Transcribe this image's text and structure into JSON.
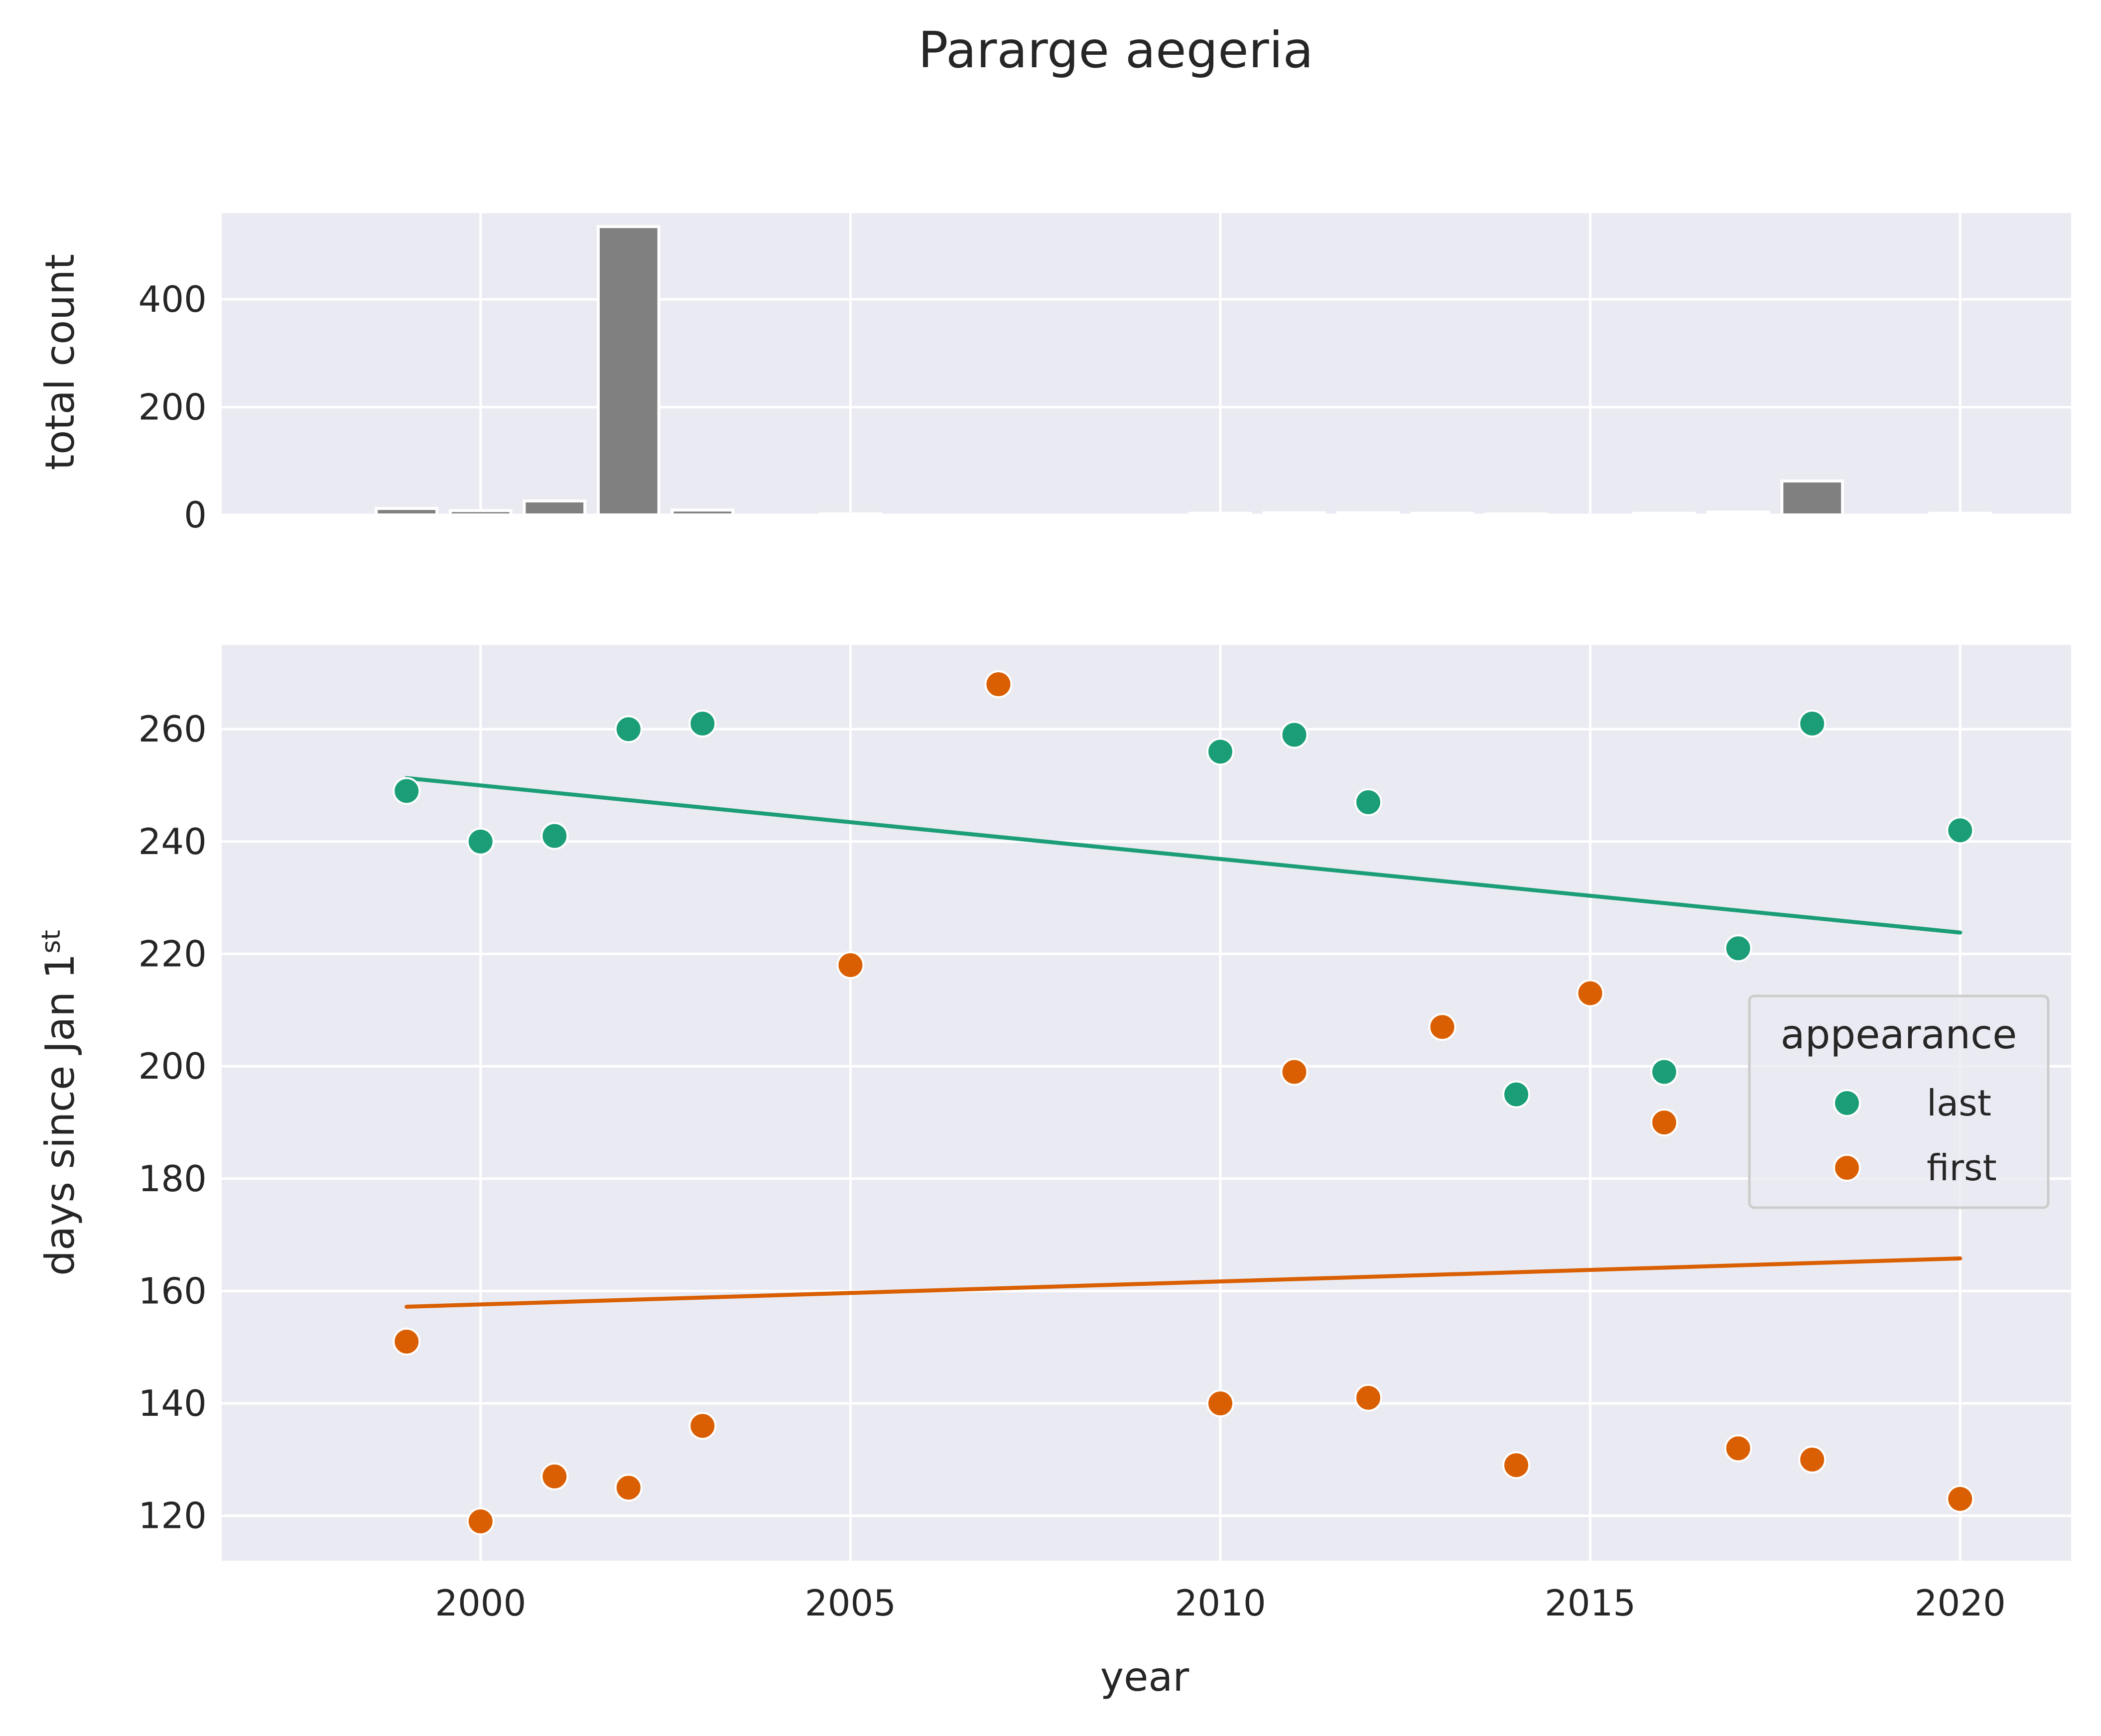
{
  "figure": {
    "title": "Pararge aegeria"
  },
  "chart_data": [
    {
      "type": "bar",
      "ylabel": "total count",
      "xlim": [
        1996.5,
        2021.5
      ],
      "ylim": [
        0,
        560
      ],
      "yticks": [
        0,
        200,
        400
      ],
      "grid": true,
      "bar_color": "#808080",
      "x": [
        1999,
        2000,
        2001,
        2002,
        2003,
        2005,
        2010,
        2011,
        2012,
        2013,
        2014,
        2016,
        2017,
        2018,
        2020
      ],
      "values": [
        12,
        8,
        26,
        535,
        9,
        2,
        3,
        4,
        4,
        3,
        2,
        3,
        5,
        63,
        3
      ]
    },
    {
      "type": "scatter",
      "xlabel": "year",
      "ylabel_main": "days since Jan 1",
      "ylabel_sup": "st",
      "xlim": [
        1996.5,
        2021.5
      ],
      "ylim": [
        112,
        275
      ],
      "xticks": [
        2000,
        2005,
        2010,
        2015,
        2020
      ],
      "yticks": [
        120,
        140,
        160,
        180,
        200,
        220,
        240,
        260
      ],
      "grid": true,
      "legend": {
        "title": "appearance",
        "placement": "center-right"
      },
      "series": [
        {
          "name": "last",
          "color": "#1b9e77",
          "x": [
            1999,
            2000,
            2001,
            2002,
            2003,
            2010,
            2011,
            2012,
            2014,
            2016,
            2017,
            2018,
            2020
          ],
          "y": [
            249,
            240,
            241,
            260,
            261,
            256,
            259,
            247,
            195,
            199,
            221,
            261,
            242
          ],
          "trend": {
            "x": [
              1999,
              2020
            ],
            "y": [
              251.3,
              223.8
            ]
          }
        },
        {
          "name": "first",
          "color": "#d95f02",
          "x": [
            1999,
            2000,
            2001,
            2002,
            2003,
            2005,
            2007,
            2010,
            2011,
            2012,
            2013,
            2014,
            2015,
            2016,
            2017,
            2018,
            2020
          ],
          "y": [
            151,
            119,
            127,
            125,
            136,
            218,
            268,
            140,
            199,
            141,
            207,
            129,
            213,
            190,
            132,
            130,
            123
          ],
          "trend": {
            "x": [
              1999,
              2020
            ],
            "y": [
              157.2,
              165.8
            ]
          }
        }
      ]
    }
  ]
}
